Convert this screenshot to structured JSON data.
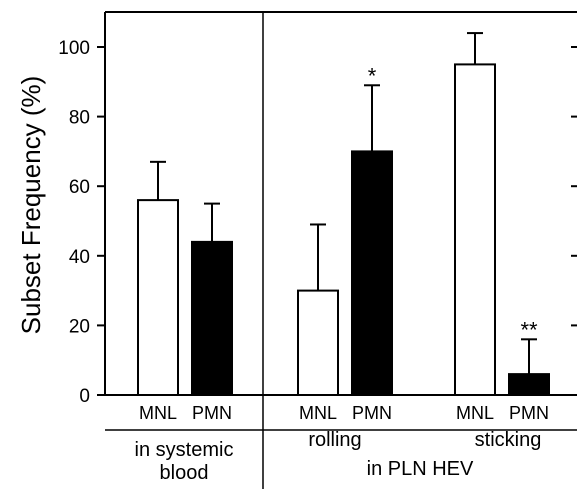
{
  "chart_data": {
    "type": "bar",
    "ylabel": "Subset Frequency (%)",
    "ylim": [
      0,
      110
    ],
    "yticks": [
      0,
      20,
      40,
      60,
      80,
      100
    ],
    "grid": false,
    "bars": [
      {
        "category": "MNL",
        "value": 56,
        "error": 11,
        "fill": "white",
        "annotation": ""
      },
      {
        "category": "PMN",
        "value": 44,
        "error": 11,
        "fill": "black",
        "annotation": ""
      },
      {
        "category": "MNL",
        "value": 30,
        "error": 19,
        "fill": "white",
        "annotation": ""
      },
      {
        "category": "PMN",
        "value": 70,
        "error": 19,
        "fill": "black",
        "annotation": "*"
      },
      {
        "category": "MNL",
        "value": 95,
        "error": 9,
        "fill": "white",
        "annotation": ""
      },
      {
        "category": "PMN",
        "value": 6,
        "error": 10,
        "fill": "black",
        "annotation": "**"
      }
    ],
    "groups": [
      {
        "label_line1": "in systemic",
        "label_line2": "blood"
      },
      {
        "label_line1": "in PLN HEV",
        "label_line2": ""
      }
    ],
    "subgroups": [
      {
        "label": "rolling"
      },
      {
        "label": "sticking"
      }
    ]
  },
  "colors": {
    "white_bar": "#ffffff",
    "black_bar": "#000000",
    "axis": "#000000"
  }
}
